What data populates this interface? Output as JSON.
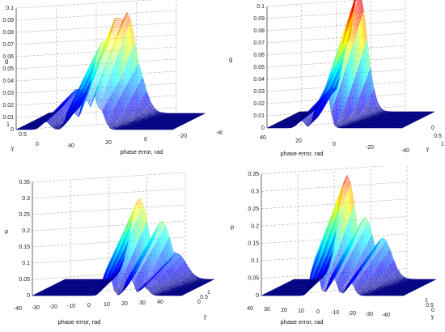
{
  "chart_data": [
    {
      "type": "surface",
      "title": "",
      "xlabel": "phase error, rad",
      "ylabel": "γ",
      "zlabel": "g",
      "x_ticks": [
        "40",
        "20",
        "0",
        "-20",
        "-40"
      ],
      "y_ticks": [
        "1",
        "0.5",
        "0"
      ],
      "z_ticks": [
        "0",
        "0.01",
        "0.02",
        "0.03",
        "0.04",
        "0.05",
        "0.06",
        "0.07",
        "0.08",
        "0.09",
        "0.1"
      ],
      "xlim": [
        -40,
        40
      ],
      "ylim": [
        0,
        1
      ],
      "zlim": [
        0,
        0.1
      ],
      "series": [
        {
          "values": [
            [
              -25,
              0.02
            ],
            [
              -12,
              0.06
            ],
            [
              -5,
              0.08
            ],
            [
              0,
              0.083
            ],
            [
              3,
              0.05
            ]
          ]
        }
      ],
      "colormap": "jet",
      "grid": true
    },
    {
      "type": "surface",
      "title": "",
      "xlabel": "phase error, rad",
      "ylabel": "γ",
      "zlabel": "g",
      "x_ticks": [
        "40",
        "20",
        "0",
        "-20",
        "-40"
      ],
      "y_ticks": [
        "0",
        "0.5",
        "1"
      ],
      "z_ticks": [
        "0",
        "0.01",
        "0.02",
        "0.03",
        "0.04",
        "0.05",
        "0.06",
        "0.07",
        "0.08",
        "0.09",
        "0.1"
      ],
      "xlim": [
        -40,
        40
      ],
      "ylim": [
        0,
        1
      ],
      "zlim": [
        0,
        0.1
      ],
      "series": [
        {
          "values": [
            [
              -20,
              0.02
            ],
            [
              -10,
              0.06
            ],
            [
              -5,
              0.1
            ]
          ]
        }
      ],
      "colormap": "jet",
      "grid": true
    },
    {
      "type": "surface",
      "title": "",
      "xlabel": "phase error, rad",
      "ylabel": "γ",
      "zlabel": "p",
      "x_ticks": [
        "-40",
        "-30",
        "-20",
        "-10",
        "0",
        "10",
        "20",
        "30",
        "40"
      ],
      "y_ticks": [
        "0",
        "0.5",
        "1"
      ],
      "z_ticks": [
        "0",
        "0.05",
        "0.1",
        "0.15",
        "0.2",
        "0.25",
        "0.3",
        "0.35"
      ],
      "xlim": [
        -40,
        40
      ],
      "ylim": [
        0,
        1
      ],
      "zlim": [
        0,
        0.35
      ],
      "series": [
        {
          "values": [
            [
              0,
              0.25
            ],
            [
              12,
              0.18
            ],
            [
              20,
              0.08
            ]
          ]
        }
      ],
      "colormap": "jet",
      "grid": true
    },
    {
      "type": "surface",
      "title": "",
      "xlabel": "phase error, rad",
      "ylabel": "γ",
      "zlabel": "p",
      "x_ticks": [
        "40",
        "30",
        "20",
        "10",
        "0",
        "-10",
        "-20",
        "-30",
        "-40"
      ],
      "y_ticks": [
        "1",
        "0.5",
        "0"
      ],
      "z_ticks": [
        "0",
        "0.05",
        "0.1",
        "0.15",
        "0.2",
        "0.25",
        "0.3",
        "0.35"
      ],
      "xlim": [
        -40,
        40
      ],
      "ylim": [
        0,
        1
      ],
      "zlim": [
        0,
        0.35
      ],
      "series": [
        {
          "values": [
            [
              -10,
              0.3
            ],
            [
              0,
              0.18
            ],
            [
              10,
              0.12
            ]
          ]
        }
      ],
      "colormap": "jet",
      "grid": true
    }
  ]
}
